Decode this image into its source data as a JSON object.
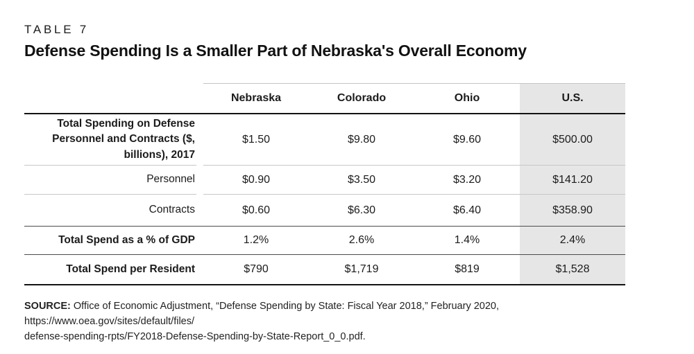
{
  "page": {
    "kicker": "TABLE 7",
    "title": "Defense Spending Is a Smaller Part of Nebraska's Overall Economy"
  },
  "colors": {
    "highlight_column_bg": "#e6e6e6",
    "heavy_rule": "#121212",
    "medium_rule": "#4a4a4a",
    "light_rule": "#c7c7c7"
  },
  "table": {
    "columns": [
      "Nebraska",
      "Colorado",
      "Ohio",
      "U.S."
    ],
    "highlighted_column": "U.S.",
    "rows": [
      {
        "label": "Total Spending on Defense Personnel and Contracts ($, billions), 2017",
        "bold": true,
        "values": [
          "$1.50",
          "$9.80",
          "$9.60",
          "$500.00"
        ]
      },
      {
        "label": "Personnel",
        "bold": false,
        "values": [
          "$0.90",
          "$3.50",
          "$3.20",
          "$141.20"
        ]
      },
      {
        "label": "Contracts",
        "bold": false,
        "values": [
          "$0.60",
          "$6.30",
          "$6.40",
          "$358.90"
        ]
      },
      {
        "label": "Total Spend as a % of GDP",
        "bold": true,
        "values": [
          "1.2%",
          "2.6%",
          "1.4%",
          "2.4%"
        ]
      },
      {
        "label": "Total Spend per Resident",
        "bold": true,
        "values": [
          "$790",
          "$1,719",
          "$819",
          "$1,528"
        ]
      }
    ]
  },
  "source": {
    "label": "SOURCE:",
    "line1": "Office of Economic Adjustment, “Defense Spending by State: Fiscal Year 2018,” February 2020, https://www.oea.gov/sites/default/files/",
    "line2": "defense-spending-rpts/FY2018-Defense-Spending-by-State-Report_0_0.pdf."
  },
  "chart_data": {
    "type": "table",
    "title": "Defense Spending Is a Smaller Part of Nebraska's Overall Economy",
    "columns": [
      "Nebraska",
      "Colorado",
      "Ohio",
      "U.S."
    ],
    "row_labels": [
      "Total Spending on Defense Personnel and Contracts ($, billions), 2017",
      "Personnel",
      "Contracts",
      "Total Spend as a % of GDP",
      "Total Spend per Resident"
    ],
    "values": [
      [
        1.5,
        9.8,
        9.6,
        500.0
      ],
      [
        0.9,
        3.5,
        3.2,
        141.2
      ],
      [
        0.6,
        6.3,
        6.4,
        358.9
      ],
      [
        "1.2%",
        "2.6%",
        "1.4%",
        "2.4%"
      ],
      [
        790,
        1719,
        819,
        1528
      ]
    ]
  }
}
